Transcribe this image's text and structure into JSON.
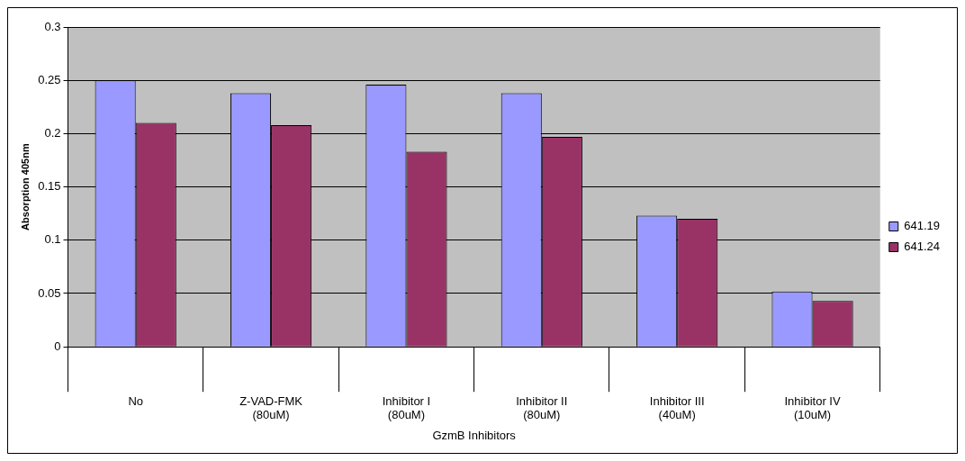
{
  "chart_data": {
    "type": "bar",
    "xlabel": "GzmB Inhibitors",
    "ylabel": "Absorption 405nm",
    "categories": [
      "No",
      "Z-VAD-FMK\n(80uM)",
      "Inhibitor I\n(80uM)",
      "Inhibitor II\n(80uM)",
      "Inhibitor III\n(40uM)",
      "Inhibitor IV\n(10uM)"
    ],
    "series": [
      {
        "name": "641.19",
        "color": "#9999ff",
        "values": [
          0.25,
          0.238,
          0.246,
          0.238,
          0.123,
          0.052
        ]
      },
      {
        "name": "641.24",
        "color": "#993366",
        "values": [
          0.21,
          0.208,
          0.183,
          0.197,
          0.12,
          0.043
        ]
      }
    ],
    "ylim": [
      0,
      0.3
    ],
    "yticks": [
      0,
      0.05,
      0.1,
      0.15,
      0.2,
      0.25,
      0.3
    ],
    "grid": "y",
    "legend": "right"
  }
}
